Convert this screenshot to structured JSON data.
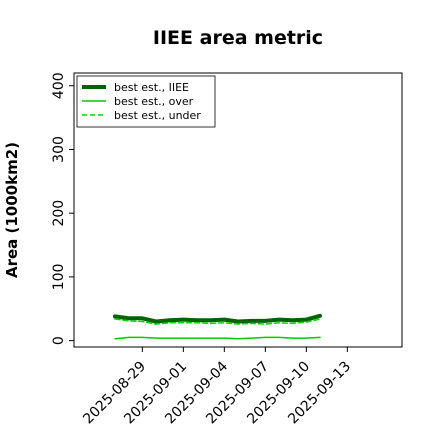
{
  "chart_data": {
    "type": "line",
    "title": "IIEE area metric",
    "xlabel": "",
    "ylabel": "Area (1000km2)",
    "ylim": [
      -10,
      420
    ],
    "xlim": [
      "2025-08-24",
      "2025-09-17"
    ],
    "y_ticks": [
      0,
      100,
      200,
      300,
      400
    ],
    "x_ticks": [
      "2025-08-29",
      "2025-09-01",
      "2025-09-04",
      "2025-09-07",
      "2025-09-10",
      "2025-09-13"
    ],
    "grid": false,
    "legend": {
      "placement": "top-left"
    },
    "x": [
      "2025-08-27",
      "2025-08-28",
      "2025-08-29",
      "2025-08-30",
      "2025-08-31",
      "2025-09-01",
      "2025-09-02",
      "2025-09-03",
      "2025-09-04",
      "2025-09-05",
      "2025-09-06",
      "2025-09-07",
      "2025-09-08",
      "2025-09-09",
      "2025-09-10",
      "2025-09-11"
    ],
    "series": [
      {
        "name": "best est., IIEE",
        "color": "#006400",
        "style": "solid-thick",
        "values": [
          38,
          35,
          35,
          30,
          32,
          33,
          32,
          32,
          33,
          30,
          31,
          31,
          33,
          32,
          33,
          39
        ]
      },
      {
        "name": "best est., over",
        "color": "#00cc00",
        "style": "solid",
        "values": [
          3,
          5,
          5,
          4,
          4,
          4,
          4,
          4,
          4,
          3,
          4,
          5,
          5,
          4,
          4,
          5
        ]
      },
      {
        "name": "best est., under",
        "color": "#00dd00",
        "style": "dashed",
        "values": [
          34,
          31,
          30,
          26,
          28,
          28,
          28,
          27,
          28,
          26,
          27,
          26,
          28,
          27,
          29,
          34
        ]
      }
    ]
  }
}
